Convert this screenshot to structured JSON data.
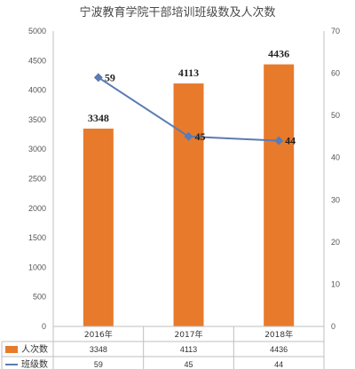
{
  "chart_data": {
    "type": "bar",
    "title": "宁波教育学院干部培训班级数及人次数",
    "categories": [
      "2016年",
      "2017年",
      "2018年"
    ],
    "series": [
      {
        "name": "人次数",
        "type": "bar",
        "axis": "left",
        "values": [
          3348,
          4113,
          4436
        ],
        "labels": [
          "3348",
          "4113",
          "4436"
        ],
        "color": "#e87a2c"
      },
      {
        "name": "班级数",
        "type": "line",
        "axis": "right",
        "values": [
          59,
          45,
          44
        ],
        "labels": [
          "59",
          "45",
          "44"
        ],
        "color": "#5b7bb2"
      }
    ],
    "ylim": [
      0,
      5000
    ],
    "y2lim": [
      0,
      70
    ],
    "y_ticks": [
      "0",
      "500",
      "1000",
      "1500",
      "2000",
      "2500",
      "3000",
      "3500",
      "4000",
      "4500",
      "5000"
    ],
    "y2_ticks": [
      "0",
      "10",
      "20",
      "30",
      "40",
      "50",
      "60",
      "70"
    ],
    "grid": false,
    "data_table": true
  }
}
